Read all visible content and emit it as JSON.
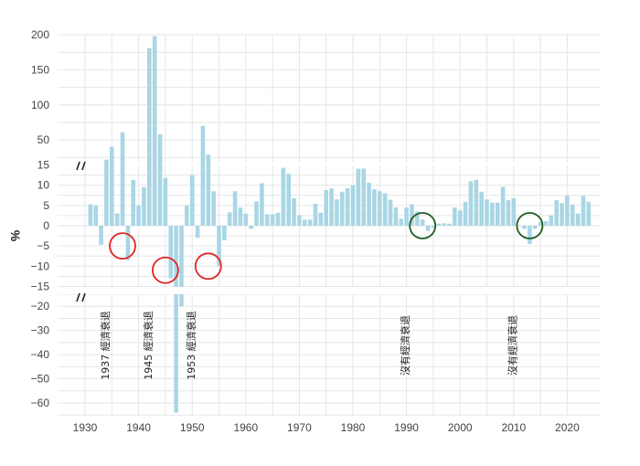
{
  "chart_data": {
    "type": "bar",
    "ylabel": "%",
    "x_ticks": [
      "1930",
      "1940",
      "1950",
      "1960",
      "1970",
      "1980",
      "1990",
      "2000",
      "2010",
      "2020"
    ],
    "panels": [
      {
        "name": "upper",
        "ylim": [
          15,
          200
        ],
        "ticks": [
          "200",
          "150",
          "100",
          "50"
        ]
      },
      {
        "name": "middle",
        "ylim": [
          -15,
          15
        ],
        "ticks": [
          "15",
          "10",
          "5",
          "0",
          "−5",
          "−10",
          "−15"
        ]
      },
      {
        "name": "lower",
        "ylim": [
          -68,
          -15
        ],
        "ticks": [
          "−20",
          "−30",
          "−40",
          "−50",
          "−60"
        ]
      }
    ],
    "years": [
      1930,
      1931,
      1932,
      1933,
      1934,
      1935,
      1936,
      1937,
      1938,
      1939,
      1940,
      1941,
      1942,
      1943,
      1944,
      1945,
      1946,
      1947,
      1948,
      1949,
      1950,
      1951,
      1952,
      1953,
      1954,
      1955,
      1956,
      1957,
      1958,
      1959,
      1960,
      1961,
      1962,
      1963,
      1964,
      1965,
      1966,
      1967,
      1968,
      1969,
      1970,
      1971,
      1972,
      1973,
      1974,
      1975,
      1976,
      1977,
      1978,
      1979,
      1980,
      1981,
      1982,
      1983,
      1984,
      1985,
      1986,
      1987,
      1988,
      1989,
      1990,
      1991,
      1992,
      1993,
      1994,
      1995,
      1996,
      1997,
      1998,
      1999,
      2000,
      2001,
      2002,
      2003,
      2004,
      2005,
      2006,
      2007,
      2008,
      2009,
      2010,
      2011,
      2012,
      2013,
      2014,
      2015,
      2016,
      2017,
      2018,
      2019,
      2020,
      2021,
      2022,
      2023,
      2024
    ],
    "values": [
      0,
      5.3,
      5.0,
      -4.7,
      22,
      40,
      3,
      61,
      -8.5,
      11.3,
      5,
      9.5,
      181,
      198,
      58,
      11.8,
      -13,
      -64,
      -20,
      5,
      12.5,
      -3,
      70,
      29,
      8.5,
      -10,
      -3.6,
      3.3,
      8.5,
      4.5,
      3,
      -0.8,
      6,
      10.5,
      2.8,
      2.8,
      3.2,
      14.3,
      12.8,
      6.8,
      2.6,
      1.5,
      1.5,
      5.4,
      3.2,
      8.8,
      9.2,
      6.5,
      8.4,
      9.3,
      10,
      14.1,
      14.1,
      10.6,
      9,
      8.5,
      8,
      6.4,
      4.5,
      1.7,
      4.5,
      5.3,
      3.5,
      1.5,
      -1.3,
      -0.5,
      0.5,
      0.6,
      0.5,
      4.5,
      3.8,
      5.9,
      11,
      11.3,
      8.4,
      6.5,
      5.7,
      5.7,
      9.6,
      6.3,
      6.8,
      0.1,
      -0.8,
      -4.5,
      -0.8,
      0.9,
      1.1,
      2.5,
      6.3,
      5.6,
      7.4,
      5.2,
      3,
      7.4,
      5.9
    ],
    "annotations": [
      {
        "label": "1937 經濟衰退",
        "year": 1937,
        "color": "#e02424",
        "value": -5
      },
      {
        "label": "1945 經濟衰退",
        "year": 1945,
        "color": "#e02424",
        "value": -11
      },
      {
        "label": "1953 經濟衰退",
        "year": 1953,
        "color": "#e02424",
        "value": -10
      },
      {
        "label": "沒有經濟衰退",
        "year": 1993,
        "color": "#1f5b1f",
        "value": 0
      },
      {
        "label": "沒有經濟衰退",
        "year": 2013,
        "color": "#1f5b1f",
        "value": 0
      }
    ],
    "colors": {
      "bar": "#a9d6e5",
      "recession_circle": "#e02424",
      "no_recession_circle": "#1f5b1f",
      "grid": "#e6e6e6",
      "axis_break": "#222222"
    }
  }
}
